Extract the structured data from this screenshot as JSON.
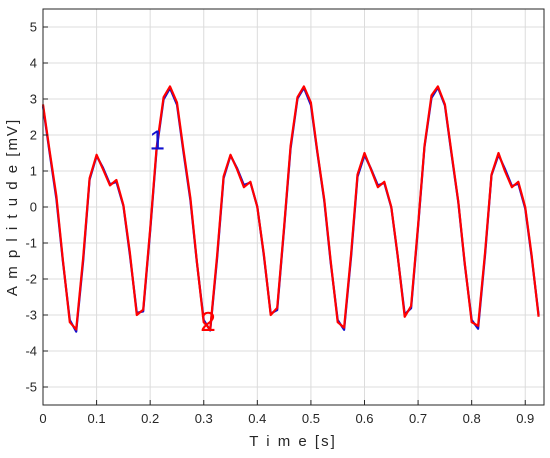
{
  "chart_data": {
    "type": "line",
    "xlabel": "T i m e [s]",
    "ylabel": "A m p l i t u d e [mV]",
    "xlim": [
      0,
      0.935
    ],
    "ylim": [
      -5.5,
      5.5
    ],
    "x_ticks": [
      0,
      0.1,
      0.2,
      0.3,
      0.4,
      0.5,
      0.6,
      0.7,
      0.8,
      0.9
    ],
    "x_tick_labels": [
      "0",
      "0.1",
      "0.2",
      "0.3",
      "0.4",
      "0.5",
      "0.6",
      "0.7",
      "0.8",
      "0.9"
    ],
    "y_ticks": [
      -5,
      -4,
      -3,
      -2,
      -1,
      0,
      1,
      2,
      3,
      4,
      5
    ],
    "y_tick_labels": [
      "-5",
      "-4",
      "-3",
      "-2",
      "-1",
      "0",
      "1",
      "2",
      "3",
      "4",
      "5"
    ],
    "grid": true,
    "x": [
      0.0,
      0.012,
      0.025,
      0.037,
      0.05,
      0.062,
      0.075,
      0.087,
      0.1,
      0.112,
      0.125,
      0.137,
      0.15,
      0.162,
      0.175,
      0.187,
      0.2,
      0.212,
      0.225,
      0.237,
      0.25,
      0.262,
      0.275,
      0.287,
      0.3,
      0.312,
      0.325,
      0.337,
      0.35,
      0.362,
      0.375,
      0.387,
      0.4,
      0.412,
      0.425,
      0.437,
      0.45,
      0.462,
      0.475,
      0.487,
      0.5,
      0.512,
      0.525,
      0.537,
      0.55,
      0.562,
      0.575,
      0.587,
      0.6,
      0.612,
      0.625,
      0.637,
      0.65,
      0.662,
      0.675,
      0.687,
      0.7,
      0.712,
      0.725,
      0.737,
      0.75,
      0.762,
      0.775,
      0.787,
      0.8,
      0.812,
      0.825,
      0.837,
      0.85,
      0.862,
      0.875,
      0.887,
      0.9,
      0.912,
      0.925
    ],
    "series": [
      {
        "name": "1",
        "color": "#1010d0",
        "values": [
          2.8,
          1.55,
          0.22,
          -1.49,
          -3.14,
          -3.46,
          -1.49,
          0.76,
          1.42,
          1.09,
          0.63,
          0.7,
          0.03,
          -1.31,
          -2.94,
          -2.9,
          -0.66,
          1.59,
          2.99,
          3.3,
          2.84,
          1.54,
          0.19,
          -1.52,
          -3.14,
          -3.43,
          -1.43,
          0.8,
          1.43,
          1.08,
          0.61,
          0.68,
          0.01,
          -1.34,
          -2.96,
          -2.86,
          -0.6,
          1.63,
          3.01,
          3.31,
          2.83,
          1.52,
          0.16,
          -1.55,
          -3.14,
          -3.41,
          -1.38,
          0.84,
          1.44,
          1.07,
          0.6,
          0.67,
          -0.01,
          -1.37,
          -2.98,
          -2.81,
          -0.55,
          1.67,
          3.03,
          3.32,
          2.82,
          1.51,
          0.13,
          -1.58,
          -3.14,
          -3.38,
          -1.32,
          0.88,
          1.45,
          1.06,
          0.58,
          0.65,
          -0.04,
          -1.4,
          -3.0
        ]
      },
      {
        "name": "2",
        "color": "#ff0000",
        "values": [
          2.85,
          1.6,
          0.3,
          -1.45,
          -3.2,
          -3.4,
          -1.4,
          0.8,
          1.45,
          1.05,
          0.6,
          0.75,
          0.05,
          -1.25,
          -3.0,
          -2.85,
          -0.6,
          1.65,
          3.05,
          3.35,
          2.9,
          1.6,
          0.25,
          -1.5,
          -3.2,
          -3.4,
          -1.35,
          0.85,
          1.45,
          1.05,
          0.55,
          0.7,
          0.0,
          -1.3,
          -3.0,
          -2.8,
          -0.55,
          1.7,
          3.05,
          3.35,
          2.9,
          1.55,
          0.2,
          -1.5,
          -3.2,
          -3.35,
          -1.3,
          0.9,
          1.5,
          1.05,
          0.55,
          0.7,
          0.0,
          -1.35,
          -3.05,
          -2.75,
          -0.5,
          1.7,
          3.1,
          3.35,
          2.85,
          1.55,
          0.15,
          -1.55,
          -3.2,
          -3.3,
          -1.25,
          0.9,
          1.5,
          1.0,
          0.55,
          0.7,
          0.0,
          -1.35,
          -3.05
        ]
      }
    ],
    "annotations": [
      {
        "text": "1",
        "x": 0.213,
        "y": 1.6,
        "color": "#1010d0"
      },
      {
        "text": "2",
        "x": 0.308,
        "y": -3.45,
        "color": "#ff0000"
      }
    ]
  }
}
